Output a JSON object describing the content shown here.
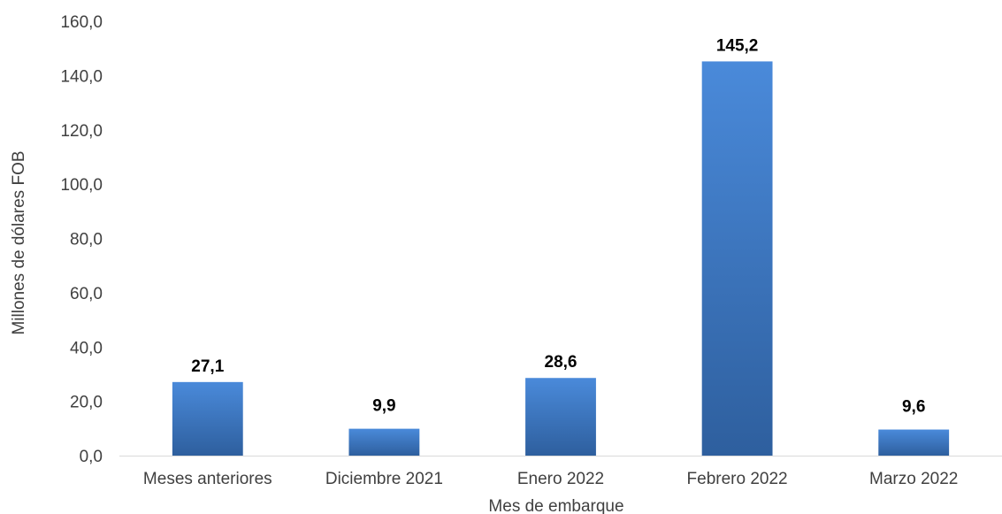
{
  "chart_data": {
    "type": "bar",
    "categories": [
      "Meses anteriores",
      "Diciembre 2021",
      "Enero 2022",
      "Febrero 2022",
      "Marzo 2022"
    ],
    "values": [
      27.1,
      9.9,
      28.6,
      145.2,
      9.6
    ],
    "data_labels": [
      "27,1",
      "9,9",
      "28,6",
      "145,2",
      "9,6"
    ],
    "title": "",
    "xlabel": "Mes de embarque",
    "ylabel": "Millones de dólares FOB",
    "ylim": [
      0,
      160
    ],
    "yticks": [
      0,
      20,
      40,
      60,
      80,
      100,
      120,
      140,
      160
    ],
    "ytick_labels": [
      "0,0",
      "20,0",
      "40,0",
      "60,0",
      "80,0",
      "100,0",
      "120,0",
      "140,0",
      "160,0"
    ],
    "grid": false,
    "legend": "none",
    "colors": {
      "bar_top": "#4a8ada",
      "bar_bottom": "#2e5f9e",
      "axis": "#d9d9d9",
      "text": "#404040",
      "data_label": "#000000"
    }
  }
}
